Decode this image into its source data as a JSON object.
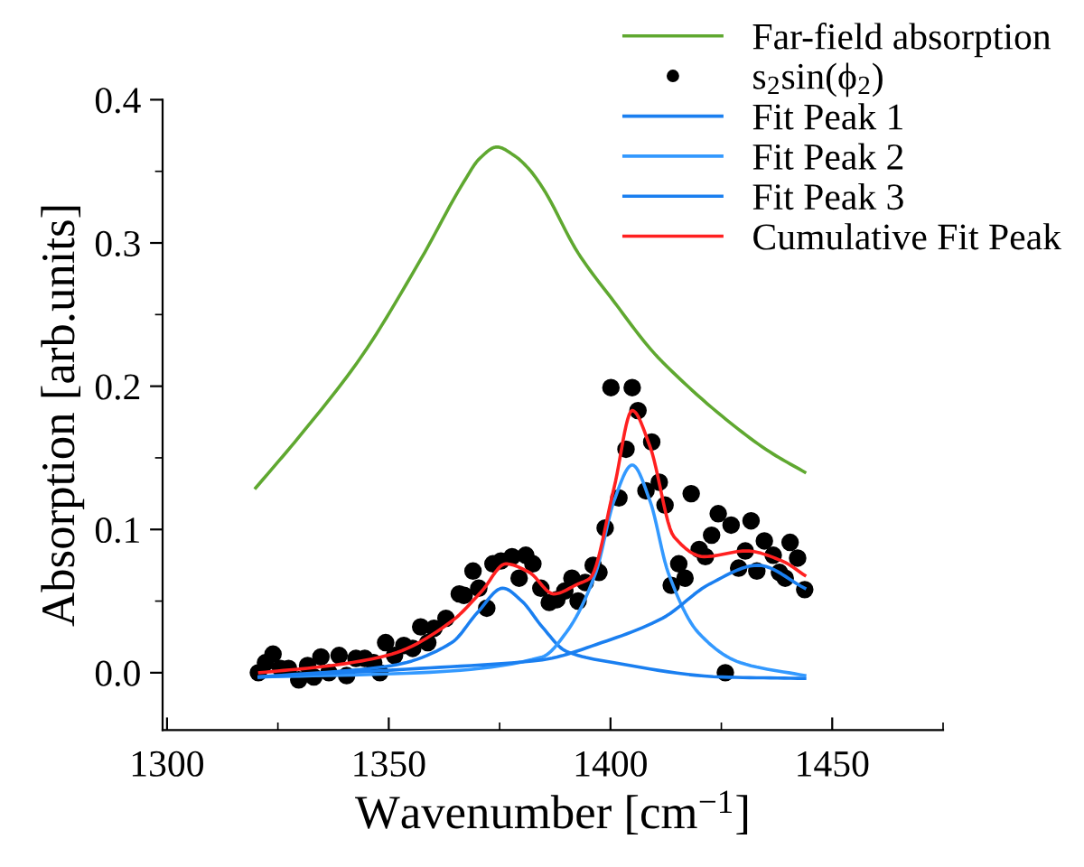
{
  "chart_data": {
    "type": "line",
    "xlabel": "Wavenumber [cm$^{−1}$]",
    "ylabel": "Absorption [arb.units]",
    "xlim": [
      1299,
      1475
    ],
    "xticks": [
      1300,
      1350,
      1400,
      1450
    ],
    "ylim": [
      -0.04,
      0.4
    ],
    "yticks": [
      {
        "value": 0,
        "label": "0.0"
      },
      0.1,
      0.2,
      0.3,
      0.4
    ],
    "grid": false,
    "legend": "top right",
    "series": [
      {
        "name": "Far-field absorption",
        "color": "#5fa830",
        "x": [
          1320.0,
          1330.4,
          1343.9,
          1357.3,
          1367.0,
          1370.5,
          1374.4,
          1378.3,
          1381.5,
          1384.6,
          1392.7,
          1400.8,
          1409.0,
          1411.7,
          1425.2,
          1436.0,
          1443.8
        ],
        "values": [
          0.129,
          0.167,
          0.221,
          0.289,
          0.343,
          0.359,
          0.367,
          0.361,
          0.352,
          0.339,
          0.293,
          0.259,
          0.226,
          0.217,
          0.179,
          0.154,
          0.14
        ]
      },
      {
        "name": "s$_{2}$sin(ϕ$_{2}$)",
        "type": "scatter",
        "marker": "circle",
        "color": "#000000",
        "x": [
          1320.6,
          1322.2,
          1323.9,
          1325.6,
          1327.4,
          1329.7,
          1331.7,
          1333.1,
          1334.7,
          1336.5,
          1338.8,
          1340.5,
          1342.6,
          1344.6,
          1346.6,
          1348.0,
          1349.3,
          1351.3,
          1353.4,
          1355.4,
          1357.2,
          1358.8,
          1360.2,
          1362.9,
          1365.9,
          1367.0,
          1369.0,
          1370.3,
          1372.1,
          1373.5,
          1375.3,
          1377.8,
          1379.4,
          1380.9,
          1382.5,
          1384.3,
          1386.2,
          1387.9,
          1389.7,
          1391.3,
          1392.7,
          1394.3,
          1396.1,
          1397.4,
          1398.8,
          1400.1,
          1401.9,
          1403.5,
          1404.9,
          1406.2,
          1408.0,
          1409.3,
          1411.0,
          1412.3,
          1413.7,
          1415.4,
          1416.8,
          1418.2,
          1420.0,
          1421.4,
          1422.8,
          1424.3,
          1425.9,
          1427.2,
          1428.9,
          1430.4,
          1431.7,
          1433.0,
          1434.7,
          1436.7,
          1438.1,
          1439.4,
          1440.5,
          1442.2,
          1443.8
        ],
        "values": [
          0.0,
          0.007,
          0.013,
          0.003,
          0.003,
          -0.005,
          0.005,
          -0.003,
          0.011,
          0.0,
          0.012,
          -0.002,
          0.01,
          0.01,
          0.007,
          0.0,
          0.021,
          0.012,
          0.019,
          0.017,
          0.032,
          0.021,
          0.031,
          0.038,
          0.055,
          0.054,
          0.071,
          0.059,
          0.045,
          0.076,
          0.078,
          0.081,
          0.066,
          0.082,
          0.076,
          0.059,
          0.049,
          0.051,
          0.057,
          0.066,
          0.05,
          0.063,
          0.075,
          0.07,
          0.101,
          0.199,
          0.122,
          0.156,
          0.199,
          0.183,
          0.127,
          0.161,
          0.133,
          0.117,
          0.061,
          0.076,
          0.066,
          0.125,
          0.086,
          0.081,
          0.096,
          0.111,
          0.0,
          0.103,
          0.073,
          0.085,
          0.106,
          0.071,
          0.092,
          0.082,
          0.07,
          0.066,
          0.091,
          0.08,
          0.058
        ]
      },
      {
        "name": "Fit Peak 1",
        "color": "#1a7ff0",
        "x": [
          1320.8,
          1350.7,
          1364.2,
          1370.0,
          1375.7,
          1380.0,
          1384.6,
          1390.0,
          1400.8,
          1425.2,
          1443.8
        ],
        "values": [
          -0.003,
          0.005,
          0.021,
          0.042,
          0.059,
          0.05,
          0.032,
          0.015,
          0.007,
          -0.003,
          -0.004
        ]
      },
      {
        "name": "Fit Peak 2",
        "color": "#3399ff",
        "x": [
          1320.8,
          1357.0,
          1384.6,
          1390.0,
          1396.7,
          1400.8,
          1404.9,
          1408.9,
          1413.0,
          1419.8,
          1429.3,
          1443.8
        ],
        "values": [
          -0.003,
          0.0,
          0.011,
          0.028,
          0.07,
          0.12,
          0.145,
          0.12,
          0.07,
          0.028,
          0.007,
          -0.002
        ]
      },
      {
        "name": "Fit Peak 3",
        "color": "#1a7ff0",
        "x": [
          1320.8,
          1357.0,
          1384.6,
          1398.0,
          1411.7,
          1422.4,
          1433.3,
          1443.8
        ],
        "values": [
          -0.003,
          0.003,
          0.009,
          0.021,
          0.038,
          0.062,
          0.075,
          0.059
        ]
      },
      {
        "name": "Cumulative Fit Peak",
        "color": "#ff2020",
        "x": [
          1320.9,
          1337.0,
          1350.7,
          1364.2,
          1371.0,
          1376.4,
          1381.7,
          1387.2,
          1392.7,
          1395.4,
          1400.8,
          1404.9,
          1408.9,
          1414.3,
          1421.1,
          1430.6,
          1438.7,
          1443.8
        ],
        "values": [
          0.0,
          0.005,
          0.013,
          0.036,
          0.057,
          0.076,
          0.07,
          0.055,
          0.062,
          0.066,
          0.129,
          0.183,
          0.158,
          0.095,
          0.081,
          0.085,
          0.078,
          0.068
        ]
      }
    ]
  }
}
